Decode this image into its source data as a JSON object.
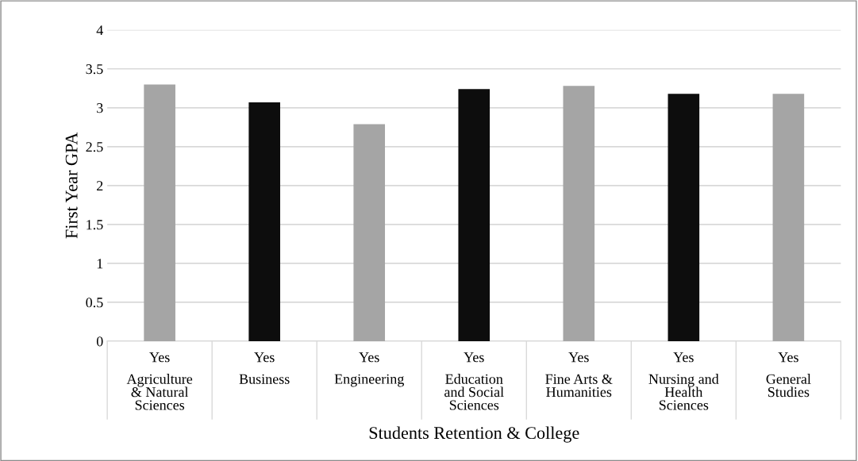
{
  "chart_data": {
    "type": "bar",
    "categories": [
      "Yes\nAgriculture\n& Natural\nSciences",
      "Yes\nBusiness",
      "Yes\nEngineering",
      "Yes\nEducation\nand Social\nSciences",
      "Yes\nFine Arts &\nHumanities",
      "Yes\nNursing and\nHealth\nSciences",
      "Yes\nGeneral\nStudies"
    ],
    "values": [
      3.3,
      3.07,
      2.79,
      3.24,
      3.28,
      3.18,
      3.18
    ],
    "colors": [
      "#a5a5a5",
      "#0d0d0d",
      "#a5a5a5",
      "#0d0d0d",
      "#a5a5a5",
      "#0d0d0d",
      "#a5a5a5"
    ],
    "xlabel": "Students Retention & College",
    "ylabel": "First Year GPA",
    "ylim": [
      0,
      4
    ],
    "yticks": [
      0,
      0.5,
      1,
      1.5,
      2,
      2.5,
      3,
      3.5,
      4
    ],
    "grid": "y",
    "legend": false
  }
}
